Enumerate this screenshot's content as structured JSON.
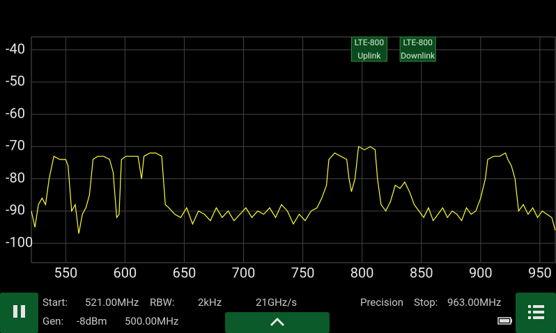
{
  "chart_data": {
    "type": "line",
    "x": [
      521,
      524,
      527,
      530,
      533,
      536,
      540,
      545,
      550,
      552,
      555,
      558,
      561,
      564,
      567,
      570,
      573,
      577,
      582,
      587,
      590,
      593,
      595,
      597,
      601,
      606,
      611,
      614,
      616,
      621,
      626,
      631,
      634,
      637,
      642,
      647,
      652,
      657,
      662,
      667,
      672,
      677,
      682,
      687,
      692,
      697,
      702,
      707,
      712,
      717,
      722,
      727,
      732,
      737,
      742,
      747,
      752,
      757,
      762,
      766,
      770,
      772,
      777,
      782,
      787,
      789,
      791,
      794,
      797,
      802,
      807,
      811,
      813,
      816,
      820,
      824,
      828,
      832,
      836,
      840,
      844,
      848,
      852,
      856,
      860,
      864,
      868,
      872,
      876,
      880,
      884,
      888,
      892,
      896,
      900,
      904,
      906,
      911,
      916,
      921,
      923,
      926,
      929,
      932,
      936,
      940,
      944,
      948,
      952,
      956,
      960,
      963
    ],
    "series": [
      {
        "color": "#ffff33",
        "values": [
          -90,
          -95,
          -88,
          -86,
          -88,
          -80,
          -73,
          -74,
          -74,
          -76,
          -90,
          -88,
          -97,
          -91,
          -89,
          -85,
          -74,
          -73,
          -73,
          -74,
          -78,
          -92,
          -91,
          -74,
          -73,
          -73,
          -73,
          -80,
          -73,
          -72,
          -72,
          -73,
          -88,
          -89,
          -91,
          -92,
          -89,
          -94,
          -90,
          -91,
          -93,
          -89,
          -92,
          -90,
          -93,
          -91,
          -89,
          -92,
          -90,
          -91,
          -89,
          -92,
          -88,
          -90,
          -94,
          -91,
          -93,
          -90,
          -89,
          -86,
          -82,
          -74,
          -72,
          -73,
          -74,
          -80,
          -84,
          -80,
          -70,
          -71,
          -70,
          -71,
          -80,
          -88,
          -90,
          -87,
          -82,
          -83,
          -81,
          -84,
          -88,
          -90,
          -92,
          -89,
          -93,
          -91,
          -89,
          -92,
          -90,
          -91,
          -93,
          -89,
          -91,
          -90,
          -86,
          -80,
          -74,
          -73,
          -73,
          -72,
          -74,
          -76,
          -80,
          -90,
          -88,
          -91,
          -89,
          -92,
          -90,
          -91,
          -92,
          -96
        ]
      }
    ],
    "xlim": [
      521,
      963
    ],
    "ylim": [
      -36,
      -106
    ],
    "xticks": [
      550,
      600,
      650,
      700,
      750,
      800,
      850,
      900,
      950
    ],
    "yticks": [
      -40,
      -50,
      -60,
      -70,
      -80,
      -90,
      -100
    ],
    "grid": true,
    "bands": [
      {
        "lines": [
          "LTE-800",
          "Uplink"
        ],
        "range": [
          791,
          821
        ]
      },
      {
        "lines": [
          "LTE-800",
          "Downlink"
        ],
        "range": [
          832,
          862
        ]
      }
    ]
  },
  "status": {
    "start_label": "Start:",
    "start": "521.00MHz",
    "rbw_label": "RBW:",
    "rbw": "2kHz",
    "speed": "21GHz/s",
    "precision": "Precision",
    "stop_label": "Stop:",
    "stop": "963.00MHz",
    "gen_label": "Gen:",
    "gen_power": "-8dBm",
    "gen_freq": "500.00MHz"
  }
}
